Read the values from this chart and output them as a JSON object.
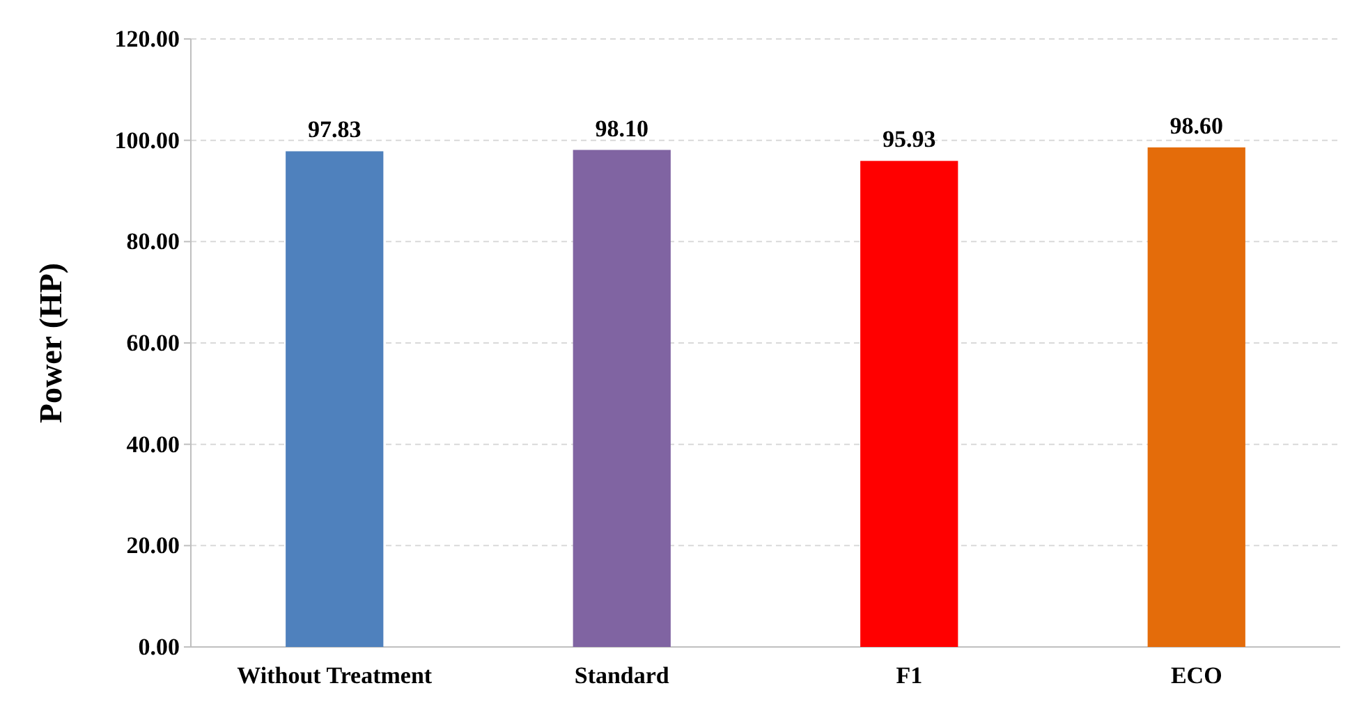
{
  "chart_data": {
    "type": "bar",
    "ylabel": "Power (HP)",
    "categories": [
      "Without Treatment",
      "Standard",
      "F1",
      "ECO"
    ],
    "values": [
      97.83,
      98.1,
      95.93,
      98.6
    ],
    "colors": [
      "#4f81bd",
      "#8064a2",
      "#ff0000",
      "#e46c0a"
    ],
    "value_labels": [
      "97.83",
      "98.10",
      "95.93",
      "98.60"
    ],
    "ylim": [
      0,
      120
    ],
    "yticks": [
      {
        "value": 0,
        "label": "0.00"
      },
      {
        "value": 20,
        "label": "20.00"
      },
      {
        "value": 40,
        "label": "40.00"
      },
      {
        "value": 60,
        "label": "60.00"
      },
      {
        "value": 80,
        "label": "80.00"
      },
      {
        "value": 100,
        "label": "100.00"
      },
      {
        "value": 120,
        "label": "120.00"
      }
    ],
    "grid": "y"
  }
}
